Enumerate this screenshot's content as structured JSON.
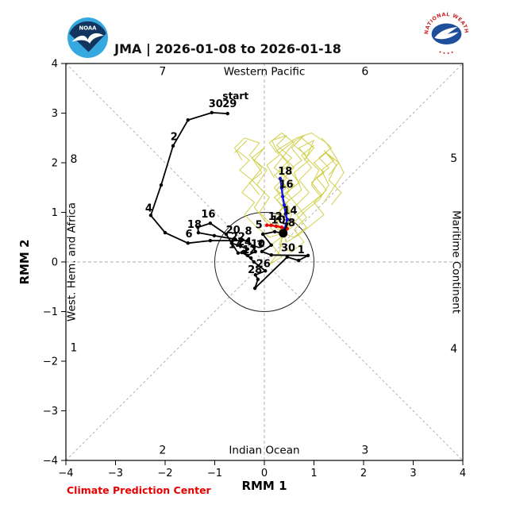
{
  "header": {
    "noaa_logo_text": "NOAA",
    "nws_logo_text": "NATIONAL WEATHER SERVICE",
    "nws_logo_dots": "• • • •"
  },
  "footer": {
    "credit": "Climate Prediction Center"
  },
  "chart_data": {
    "type": "line",
    "title": "JMA | 2026-01-08 to 2026-01-18",
    "xlabel": "RMM 1",
    "ylabel": "RMM 2",
    "xlim": [
      -4,
      4
    ],
    "ylim": [
      -4,
      4
    ],
    "xticks": [
      -4,
      -3,
      -2,
      -1,
      0,
      1,
      2,
      3,
      4
    ],
    "yticks": [
      -4,
      -3,
      -2,
      -1,
      0,
      1,
      2,
      3,
      4
    ],
    "unit_circle_radius": 1,
    "grid": "dashed zero lines and corner diagonals",
    "colors": {
      "observed": "#000000",
      "forecast_early": "#e60000",
      "forecast_late": "#1414dd",
      "ensemble": "#cdcd42",
      "guides": "#a9a9a9",
      "frame": "#000000",
      "credit": "#e60000"
    },
    "phase_labels": [
      {
        "text": "7",
        "x": -2.05,
        "y": 3.85
      },
      {
        "text": "Western Pacific",
        "x": 0.0,
        "y": 3.85
      },
      {
        "text": "6",
        "x": 2.03,
        "y": 3.85
      },
      {
        "text": "8",
        "x": -3.84,
        "y": 2.08
      },
      {
        "text": "5",
        "x": 3.82,
        "y": 2.1
      },
      {
        "text": "1",
        "x": -3.84,
        "y": -1.72
      },
      {
        "text": "4",
        "x": 3.82,
        "y": -1.74
      },
      {
        "text": "2",
        "x": -2.05,
        "y": -3.78
      },
      {
        "text": "Indian Ocean",
        "x": 0.0,
        "y": -3.78
      },
      {
        "text": "3",
        "x": 2.03,
        "y": -3.78
      }
    ],
    "side_labels": [
      {
        "text": "West. Hem. and Africa",
        "x": -3.82,
        "y": 0,
        "rotate": -90
      },
      {
        "text": "Maritime Continent",
        "x": 3.8,
        "y": 0,
        "rotate": 90
      }
    ],
    "start_label": {
      "text": "start",
      "x": -0.58,
      "y": 3.28
    },
    "observed": {
      "name": "observed last 40 days",
      "points": [
        [
          -0.74,
          2.99
        ],
        [
          -1.06,
          3.01
        ],
        [
          -1.54,
          2.86
        ],
        [
          -1.84,
          2.34
        ],
        [
          -2.08,
          1.55
        ],
        [
          -2.29,
          0.94
        ],
        [
          -2.0,
          0.59
        ],
        [
          -1.54,
          0.38
        ],
        [
          -1.09,
          0.43
        ],
        [
          -0.34,
          0.43
        ],
        [
          -0.24,
          0.32
        ],
        [
          -0.18,
          0.21
        ],
        [
          -0.34,
          0.13
        ],
        [
          -0.27,
          0.08
        ],
        [
          -0.45,
          0.19
        ],
        [
          -0.53,
          0.18
        ],
        [
          -0.77,
          0.56
        ],
        [
          -1.09,
          0.78
        ],
        [
          -1.34,
          0.7
        ],
        [
          -1.33,
          0.59
        ],
        [
          -1.01,
          0.53
        ],
        [
          -0.59,
          0.46
        ],
        [
          -0.66,
          0.38
        ],
        [
          -0.48,
          0.32
        ],
        [
          -0.34,
          0.26
        ],
        [
          -0.42,
          0.21
        ],
        [
          -0.21,
          0.0
        ],
        [
          0.02,
          -0.18
        ],
        [
          -0.18,
          -0.26
        ],
        [
          -0.13,
          -0.35
        ],
        [
          -0.19,
          -0.53
        ],
        [
          0.46,
          0.1
        ],
        [
          0.69,
          0.03
        ],
        [
          0.88,
          0.13
        ],
        [
          0.14,
          0.14
        ],
        [
          -0.05,
          0.21
        ],
        [
          0.14,
          0.34
        ],
        [
          -0.03,
          0.56
        ],
        [
          0.21,
          0.61
        ],
        [
          0.38,
          0.58
        ]
      ],
      "labels": [
        {
          "t": "30",
          "x": -0.98,
          "y": 3.12
        },
        {
          "t": "29",
          "x": -0.7,
          "y": 3.12
        },
        {
          "t": "2",
          "x": -1.82,
          "y": 2.46
        },
        {
          "t": "4",
          "x": -2.33,
          "y": 1.02
        },
        {
          "t": "6",
          "x": -1.52,
          "y": 0.5
        },
        {
          "t": "8",
          "x": -0.32,
          "y": 0.55
        },
        {
          "t": "10",
          "x": -0.13,
          "y": 0.3
        },
        {
          "t": "12",
          "x": -0.3,
          "y": 0.18
        },
        {
          "t": "14",
          "x": -0.58,
          "y": 0.28
        },
        {
          "t": "16",
          "x": -1.13,
          "y": 0.9
        },
        {
          "t": "18",
          "x": -1.41,
          "y": 0.69
        },
        {
          "t": "20",
          "x": -0.63,
          "y": 0.58
        },
        {
          "t": "22",
          "x": -0.53,
          "y": 0.44
        },
        {
          "t": "24",
          "x": -0.4,
          "y": 0.34
        },
        {
          "t": "26",
          "x": -0.02,
          "y": -0.1
        },
        {
          "t": "28",
          "x": -0.19,
          "y": -0.22
        },
        {
          "t": "30",
          "x": 0.48,
          "y": 0.22
        },
        {
          "t": "1",
          "x": 0.74,
          "y": 0.18
        },
        {
          "t": "3",
          "x": -0.09,
          "y": 0.28
        },
        {
          "t": "5",
          "x": -0.11,
          "y": 0.68
        },
        {
          "t": "7",
          "x": 0.43,
          "y": 0.63
        }
      ],
      "current_point": {
        "x": 0.38,
        "y": 0.58
      }
    },
    "forecasts": [
      {
        "name": "mean forecast days 8-12",
        "color_key": "forecast_early",
        "points": [
          [
            0.38,
            0.58
          ],
          [
            0.46,
            0.67
          ],
          [
            0.35,
            0.7
          ],
          [
            0.24,
            0.72
          ],
          [
            0.14,
            0.74
          ],
          [
            0.05,
            0.74
          ]
        ],
        "labels": [
          {
            "t": "8",
            "x": 0.55,
            "y": 0.72
          },
          {
            "t": "10",
            "x": 0.28,
            "y": 0.78
          },
          {
            "t": "12",
            "x": 0.22,
            "y": 0.85
          }
        ]
      },
      {
        "name": "mean forecast days 13-18",
        "color_key": "forecast_late",
        "points": [
          [
            0.38,
            0.58
          ],
          [
            0.46,
            0.85
          ],
          [
            0.43,
            0.96
          ],
          [
            0.4,
            1.15
          ],
          [
            0.37,
            1.32
          ],
          [
            0.35,
            1.49
          ],
          [
            0.32,
            1.68
          ]
        ],
        "labels": [
          {
            "t": "14",
            "x": 0.52,
            "y": 0.97
          },
          {
            "t": "16",
            "x": 0.44,
            "y": 1.5
          },
          {
            "t": "18",
            "x": 0.42,
            "y": 1.76
          }
        ]
      }
    ],
    "ensemble": {
      "name": "ensemble members",
      "tracks": [
        [
          [
            0.38,
            0.58
          ],
          [
            0.55,
            0.95
          ],
          [
            0.35,
            1.25
          ],
          [
            0.6,
            1.55
          ],
          [
            0.3,
            1.85
          ],
          [
            0.55,
            2.1
          ],
          [
            0.25,
            2.35
          ],
          [
            0.45,
            2.55
          ],
          [
            0.15,
            2.45
          ],
          [
            0.3,
            2.15
          ],
          [
            0.05,
            1.95
          ],
          [
            0.2,
            1.7
          ]
        ],
        [
          [
            0.38,
            0.58
          ],
          [
            0.2,
            0.9
          ],
          [
            0.45,
            1.2
          ],
          [
            0.75,
            1.45
          ],
          [
            0.6,
            1.8
          ],
          [
            0.9,
            2.05
          ],
          [
            0.7,
            2.3
          ],
          [
            1.0,
            2.45
          ],
          [
            0.85,
            2.1
          ],
          [
            1.1,
            1.85
          ],
          [
            0.95,
            1.55
          ],
          [
            1.15,
            1.3
          ]
        ],
        [
          [
            0.38,
            0.58
          ],
          [
            0.6,
            0.8
          ],
          [
            0.85,
            1.05
          ],
          [
            1.1,
            1.25
          ],
          [
            1.3,
            1.55
          ],
          [
            1.15,
            1.85
          ],
          [
            1.4,
            2.05
          ],
          [
            1.2,
            2.25
          ],
          [
            1.45,
            1.95
          ],
          [
            1.3,
            1.65
          ],
          [
            1.55,
            1.4
          ],
          [
            1.35,
            1.15
          ]
        ],
        [
          [
            0.38,
            0.58
          ],
          [
            0.15,
            0.75
          ],
          [
            -0.1,
            1.0
          ],
          [
            0.1,
            1.3
          ],
          [
            -0.15,
            1.55
          ],
          [
            0.05,
            1.85
          ],
          [
            -0.2,
            2.05
          ],
          [
            0.0,
            2.3
          ],
          [
            -0.25,
            2.1
          ],
          [
            -0.05,
            1.8
          ],
          [
            -0.3,
            1.6
          ],
          [
            -0.1,
            1.35
          ]
        ],
        [
          [
            0.38,
            0.58
          ],
          [
            0.3,
            0.35
          ],
          [
            0.55,
            0.2
          ],
          [
            0.8,
            0.4
          ],
          [
            0.6,
            0.65
          ],
          [
            0.85,
            0.9
          ],
          [
            0.65,
            1.15
          ],
          [
            0.9,
            1.4
          ],
          [
            0.7,
            1.65
          ],
          [
            0.95,
            1.9
          ],
          [
            0.75,
            2.15
          ],
          [
            1.0,
            2.35
          ]
        ],
        [
          [
            0.38,
            0.58
          ],
          [
            0.5,
            0.75
          ],
          [
            0.3,
            1.0
          ],
          [
            0.5,
            1.25
          ],
          [
            0.25,
            1.45
          ],
          [
            0.45,
            1.7
          ],
          [
            0.2,
            1.9
          ],
          [
            0.4,
            2.15
          ],
          [
            0.6,
            2.4
          ],
          [
            0.35,
            2.6
          ],
          [
            0.1,
            2.4
          ],
          [
            0.25,
            2.2
          ]
        ],
        [
          [
            0.38,
            0.58
          ],
          [
            0.1,
            0.5
          ],
          [
            -0.15,
            0.7
          ],
          [
            -0.4,
            0.95
          ],
          [
            -0.2,
            1.2
          ],
          [
            -0.45,
            1.4
          ],
          [
            -0.25,
            1.65
          ],
          [
            -0.5,
            1.85
          ],
          [
            -0.3,
            2.05
          ],
          [
            -0.55,
            2.25
          ],
          [
            -0.35,
            2.45
          ],
          [
            -0.6,
            2.2
          ]
        ],
        [
          [
            0.38,
            0.58
          ],
          [
            0.45,
            0.4
          ],
          [
            0.7,
            0.55
          ],
          [
            0.95,
            0.75
          ],
          [
            1.2,
            0.95
          ],
          [
            1.0,
            1.2
          ],
          [
            1.25,
            1.45
          ],
          [
            1.05,
            1.7
          ],
          [
            1.3,
            1.9
          ],
          [
            1.1,
            2.1
          ],
          [
            1.35,
            2.3
          ],
          [
            1.15,
            2.5
          ]
        ],
        [
          [
            0.38,
            0.58
          ],
          [
            0.25,
            0.8
          ],
          [
            0.45,
            1.05
          ],
          [
            0.2,
            1.3
          ],
          [
            0.45,
            1.5
          ],
          [
            0.2,
            1.75
          ],
          [
            0.5,
            1.95
          ],
          [
            0.3,
            2.2
          ],
          [
            0.55,
            2.4
          ],
          [
            0.8,
            2.55
          ],
          [
            0.6,
            2.35
          ],
          [
            0.85,
            2.15
          ]
        ],
        [
          [
            0.38,
            0.58
          ],
          [
            0.55,
            0.7
          ],
          [
            0.4,
            0.95
          ],
          [
            0.65,
            1.15
          ],
          [
            0.45,
            1.4
          ],
          [
            0.7,
            1.6
          ],
          [
            0.5,
            1.85
          ],
          [
            0.75,
            2.05
          ],
          [
            0.55,
            2.3
          ],
          [
            0.75,
            2.5
          ],
          [
            1.0,
            2.3
          ],
          [
            0.8,
            2.05
          ]
        ],
        [
          [
            0.38,
            0.58
          ],
          [
            0.2,
            0.6
          ],
          [
            0.0,
            0.85
          ],
          [
            -0.2,
            1.1
          ],
          [
            0.0,
            1.4
          ],
          [
            -0.25,
            1.65
          ],
          [
            -0.05,
            1.9
          ],
          [
            -0.3,
            2.15
          ],
          [
            -0.1,
            2.4
          ],
          [
            -0.4,
            2.5
          ],
          [
            -0.6,
            2.3
          ],
          [
            -0.45,
            2.05
          ]
        ],
        [
          [
            0.38,
            0.58
          ],
          [
            0.6,
            0.5
          ],
          [
            0.85,
            0.7
          ],
          [
            0.65,
            0.95
          ],
          [
            0.9,
            1.15
          ],
          [
            1.15,
            1.35
          ],
          [
            0.95,
            1.6
          ],
          [
            1.2,
            1.8
          ],
          [
            1.0,
            2.0
          ],
          [
            1.25,
            2.2
          ],
          [
            1.5,
            2.0
          ],
          [
            1.3,
            1.75
          ]
        ],
        [
          [
            0.38,
            0.58
          ],
          [
            0.3,
            0.2
          ],
          [
            0.1,
            -0.05
          ],
          [
            0.35,
            0.1
          ],
          [
            0.15,
            0.35
          ],
          [
            0.4,
            0.55
          ],
          [
            0.2,
            0.8
          ],
          [
            0.45,
            1.0
          ],
          [
            0.25,
            1.25
          ],
          [
            0.5,
            1.45
          ],
          [
            0.3,
            1.7
          ],
          [
            0.55,
            1.9
          ]
        ],
        [
          [
            0.38,
            0.58
          ],
          [
            0.5,
            1.1
          ],
          [
            0.2,
            1.5
          ],
          [
            0.6,
            1.9
          ],
          [
            0.25,
            2.25
          ],
          [
            0.65,
            2.5
          ],
          [
            0.95,
            2.6
          ],
          [
            1.25,
            2.4
          ],
          [
            1.45,
            2.1
          ],
          [
            1.6,
            1.8
          ],
          [
            1.4,
            1.5
          ],
          [
            1.2,
            1.2
          ]
        ]
      ]
    }
  }
}
